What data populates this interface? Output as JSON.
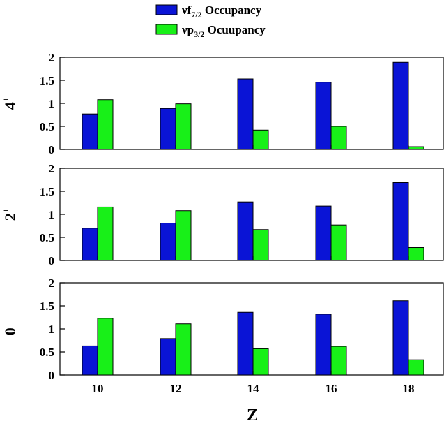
{
  "chart_data": {
    "type": "bar",
    "xlabel": "Z",
    "categories": [
      "10",
      "12",
      "14",
      "16",
      "18"
    ],
    "legend_position": "top-center",
    "legend": [
      {
        "series": "f",
        "prefix": "ν",
        "main": "f",
        "sub": "7/2",
        "suffix": " Occupancy",
        "color": "#0a14d6"
      },
      {
        "series": "p",
        "prefix": "ν",
        "main": "p",
        "sub": "3/2",
        "suffix": " Ocuupancy",
        "color": "#18f018"
      }
    ],
    "panels": [
      {
        "ylabel": "4",
        "ylabel_sup": "+",
        "ylim": [
          0,
          2
        ],
        "yticks": [
          "0",
          "0.5",
          "1",
          "1.5",
          "2"
        ],
        "series": [
          {
            "key": "f",
            "values": [
              0.77,
              0.89,
              1.53,
              1.46,
              1.89
            ]
          },
          {
            "key": "p",
            "values": [
              1.08,
              0.99,
              0.42,
              0.5,
              0.06
            ]
          }
        ]
      },
      {
        "ylabel": "2",
        "ylabel_sup": "+",
        "ylim": [
          0,
          2
        ],
        "yticks": [
          "0",
          "0.5",
          "1",
          "1.5",
          "2"
        ],
        "series": [
          {
            "key": "f",
            "values": [
              0.7,
              0.81,
              1.27,
              1.18,
              1.69
            ]
          },
          {
            "key": "p",
            "values": [
              1.16,
              1.08,
              0.67,
              0.77,
              0.28
            ]
          }
        ]
      },
      {
        "ylabel": "0",
        "ylabel_sup": "+",
        "ylim": [
          0,
          2
        ],
        "yticks": [
          "0",
          "0.5",
          "1",
          "1.5",
          "2"
        ],
        "series": [
          {
            "key": "f",
            "values": [
              0.63,
              0.79,
              1.36,
              1.32,
              1.61
            ]
          },
          {
            "key": "p",
            "values": [
              1.23,
              1.11,
              0.57,
              0.62,
              0.33
            ]
          }
        ]
      }
    ]
  }
}
